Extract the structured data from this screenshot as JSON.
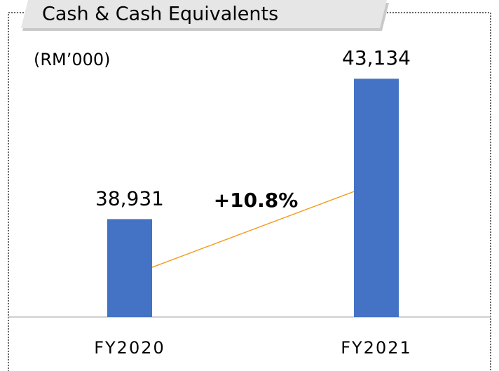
{
  "chart_data": {
    "type": "bar",
    "title": "Cash & Cash Equivalents",
    "subtitle": "(RM’000)",
    "categories": [
      "FY2020",
      "FY2021"
    ],
    "values": [
      38931,
      43134
    ],
    "value_labels": [
      "38,931",
      "43,134"
    ],
    "color": "#4472c4",
    "ylim": [
      36000,
      44000
    ],
    "annotation": "+10.8%",
    "annotation_color": "#f59a1b"
  }
}
